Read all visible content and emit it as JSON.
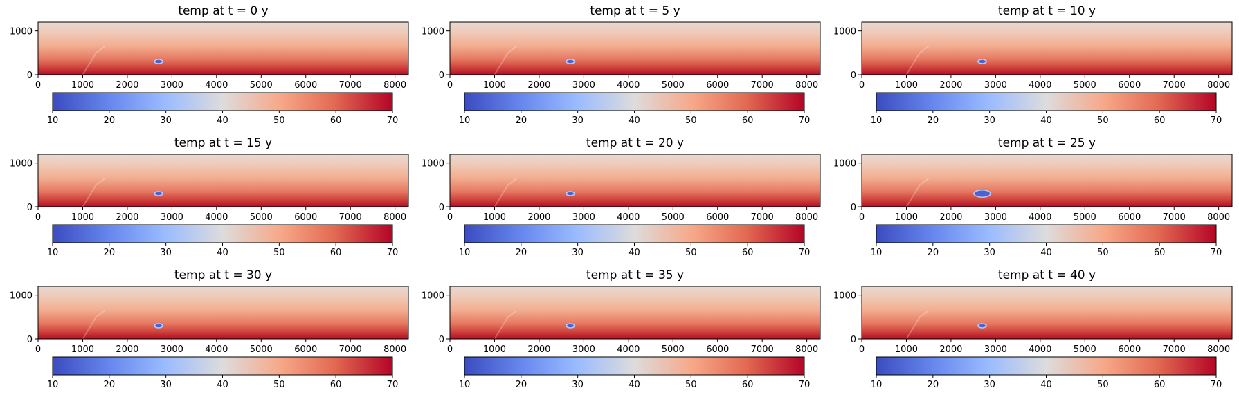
{
  "figure": {
    "variable": "temp",
    "colormap": "coolwarm"
  },
  "chart_data": [
    {
      "type": "heatmap",
      "title": "temp at t = 0 y",
      "xlim": [
        0,
        8300
      ],
      "ylim": [
        0,
        1200
      ],
      "xticks": [
        0,
        1000,
        2000,
        3000,
        4000,
        5000,
        6000,
        7000,
        8000
      ],
      "yticks": [
        0,
        1000
      ],
      "colorbar": {
        "range": [
          10,
          70
        ],
        "ticks": [
          10,
          20,
          30,
          40,
          50,
          60,
          70
        ]
      },
      "anomaly": {
        "center": [
          2700,
          300
        ],
        "extent": "small"
      }
    },
    {
      "type": "heatmap",
      "title": "temp at t = 5 y",
      "xlim": [
        0,
        8300
      ],
      "ylim": [
        0,
        1200
      ],
      "xticks": [
        0,
        1000,
        2000,
        3000,
        4000,
        5000,
        6000,
        7000,
        8000
      ],
      "yticks": [
        0,
        1000
      ],
      "colorbar": {
        "range": [
          10,
          70
        ],
        "ticks": [
          10,
          20,
          30,
          40,
          50,
          60,
          70
        ]
      },
      "anomaly": {
        "center": [
          2700,
          300
        ],
        "extent": "small"
      }
    },
    {
      "type": "heatmap",
      "title": "temp at t = 10 y",
      "xlim": [
        0,
        8300
      ],
      "ylim": [
        0,
        1200
      ],
      "xticks": [
        0,
        1000,
        2000,
        3000,
        4000,
        5000,
        6000,
        7000,
        8000
      ],
      "yticks": [
        0,
        1000
      ],
      "colorbar": {
        "range": [
          10,
          70
        ],
        "ticks": [
          10,
          20,
          30,
          40,
          50,
          60,
          70
        ]
      },
      "anomaly": {
        "center": [
          2700,
          300
        ],
        "extent": "small"
      }
    },
    {
      "type": "heatmap",
      "title": "temp at t = 15 y",
      "xlim": [
        0,
        8300
      ],
      "ylim": [
        0,
        1200
      ],
      "xticks": [
        0,
        1000,
        2000,
        3000,
        4000,
        5000,
        6000,
        7000,
        8000
      ],
      "yticks": [
        0,
        1000
      ],
      "colorbar": {
        "range": [
          10,
          70
        ],
        "ticks": [
          10,
          20,
          30,
          40,
          50,
          60,
          70
        ]
      },
      "anomaly": {
        "center": [
          2700,
          300
        ],
        "extent": "small"
      }
    },
    {
      "type": "heatmap",
      "title": "temp at t = 20 y",
      "xlim": [
        0,
        8300
      ],
      "ylim": [
        0,
        1200
      ],
      "xticks": [
        0,
        1000,
        2000,
        3000,
        4000,
        5000,
        6000,
        7000,
        8000
      ],
      "yticks": [
        0,
        1000
      ],
      "colorbar": {
        "range": [
          10,
          70
        ],
        "ticks": [
          10,
          20,
          30,
          40,
          50,
          60,
          70
        ]
      },
      "anomaly": {
        "center": [
          2700,
          300
        ],
        "extent": "small"
      }
    },
    {
      "type": "heatmap",
      "title": "temp at t = 25 y",
      "xlim": [
        0,
        8300
      ],
      "ylim": [
        0,
        1200
      ],
      "xticks": [
        0,
        1000,
        2000,
        3000,
        4000,
        5000,
        6000,
        7000,
        8000
      ],
      "yticks": [
        0,
        1000
      ],
      "colorbar": {
        "range": [
          10,
          70
        ],
        "ticks": [
          10,
          20,
          30,
          40,
          50,
          60,
          70
        ]
      },
      "anomaly": {
        "center": [
          2700,
          300
        ],
        "extent": "large"
      }
    },
    {
      "type": "heatmap",
      "title": "temp at t = 30 y",
      "xlim": [
        0,
        8300
      ],
      "ylim": [
        0,
        1200
      ],
      "xticks": [
        0,
        1000,
        2000,
        3000,
        4000,
        5000,
        6000,
        7000,
        8000
      ],
      "yticks": [
        0,
        1000
      ],
      "colorbar": {
        "range": [
          10,
          70
        ],
        "ticks": [
          10,
          20,
          30,
          40,
          50,
          60,
          70
        ]
      },
      "anomaly": {
        "center": [
          2700,
          300
        ],
        "extent": "small"
      }
    },
    {
      "type": "heatmap",
      "title": "temp at t = 35 y",
      "xlim": [
        0,
        8300
      ],
      "ylim": [
        0,
        1200
      ],
      "xticks": [
        0,
        1000,
        2000,
        3000,
        4000,
        5000,
        6000,
        7000,
        8000
      ],
      "yticks": [
        0,
        1000
      ],
      "colorbar": {
        "range": [
          10,
          70
        ],
        "ticks": [
          10,
          20,
          30,
          40,
          50,
          60,
          70
        ]
      },
      "anomaly": {
        "center": [
          2700,
          300
        ],
        "extent": "small"
      }
    },
    {
      "type": "heatmap",
      "title": "temp at t = 40 y",
      "xlim": [
        0,
        8300
      ],
      "ylim": [
        0,
        1200
      ],
      "xticks": [
        0,
        1000,
        2000,
        3000,
        4000,
        5000,
        6000,
        7000,
        8000
      ],
      "yticks": [
        0,
        1000
      ],
      "colorbar": {
        "range": [
          10,
          70
        ],
        "ticks": [
          10,
          20,
          30,
          40,
          50,
          60,
          70
        ]
      },
      "anomaly": {
        "center": [
          2700,
          300
        ],
        "extent": "small"
      }
    }
  ]
}
